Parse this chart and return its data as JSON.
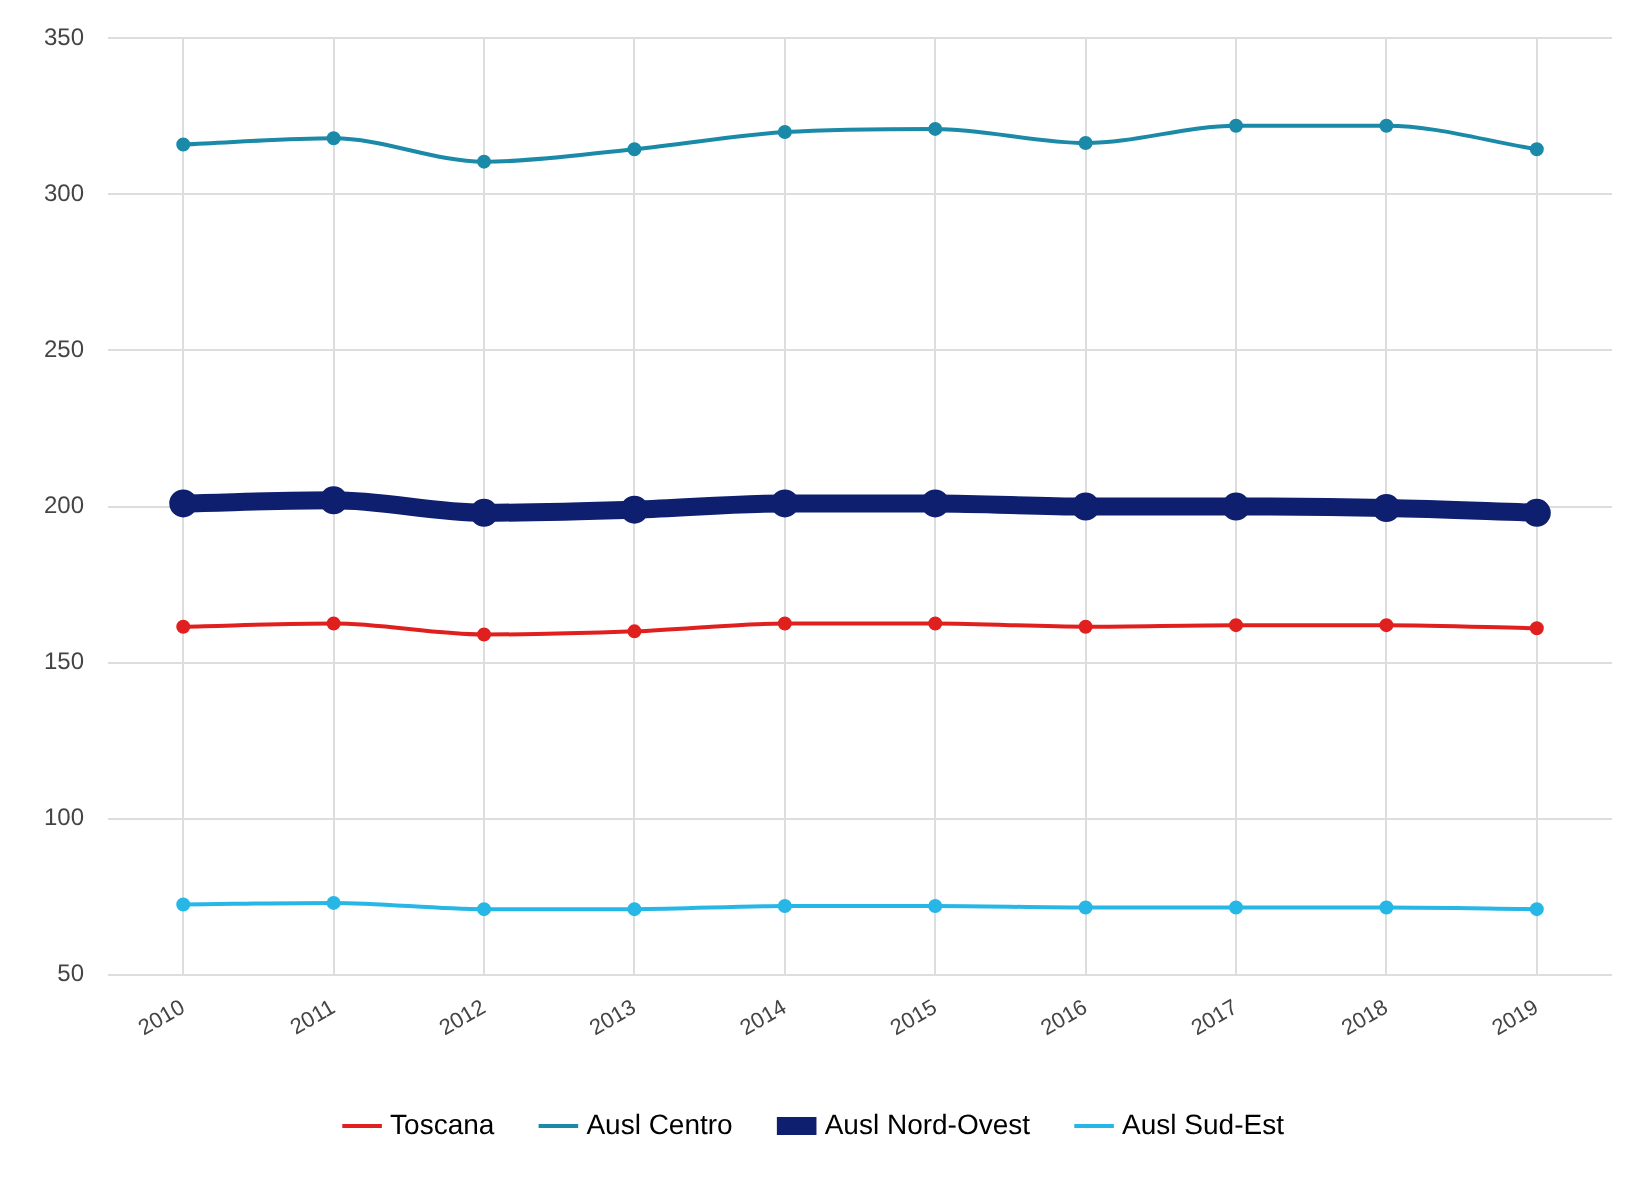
{
  "chart_data": {
    "type": "line",
    "categories": [
      "2010",
      "2011",
      "2012",
      "2013",
      "2014",
      "2015",
      "2016",
      "2017",
      "2018",
      "2019"
    ],
    "series": [
      {
        "name": "Toscana",
        "color": "#e0201f",
        "values": [
          161.5,
          162.5,
          159,
          160,
          162.5,
          162.5,
          161.5,
          162,
          162,
          161
        ]
      },
      {
        "name": "Ausl Centro",
        "color": "#1b8aa8",
        "values": [
          316,
          318,
          310.5,
          314.5,
          320,
          321,
          316.5,
          322,
          322,
          314.5
        ]
      },
      {
        "name": "Ausl Nord-Ovest",
        "color": "#0d1f6e",
        "values": [
          201,
          202,
          198,
          199,
          201,
          201,
          200,
          200,
          199.5,
          198
        ]
      },
      {
        "name": "Ausl Sud-Est",
        "color": "#27b7e6",
        "values": [
          72.5,
          73,
          71,
          71,
          72,
          72,
          71.5,
          71.5,
          71.5,
          71
        ]
      }
    ],
    "ylim": [
      50,
      350
    ],
    "yticks": [
      50,
      100,
      150,
      200,
      250,
      300,
      350
    ],
    "grid": true,
    "legend": "bottom",
    "marker": "circle",
    "line_style": "solid"
  }
}
